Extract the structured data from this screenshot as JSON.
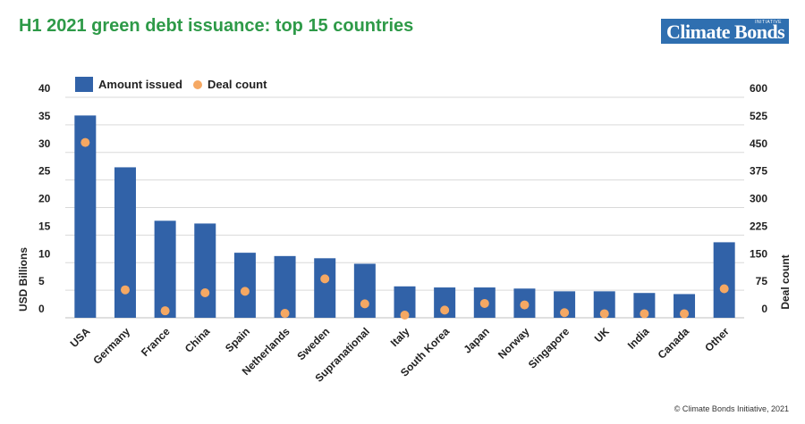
{
  "title": "H1 2021 green debt issuance: top 15 countries",
  "logo": {
    "main": "Climate Bonds",
    "sub": "INITIATIVE"
  },
  "credit": "© Climate Bonds Initiative, 2021",
  "colors": {
    "bars": "#3162a8",
    "dots": "#f5a863",
    "title": "#2e9a48",
    "grid": "#d9d9d9"
  },
  "chart_data": {
    "type": "bar",
    "categories": [
      "USA",
      "Germany",
      "France",
      "China",
      "Spain",
      "Netherlands",
      "Sweden",
      "Supranational",
      "Italy",
      "South Korea",
      "Japan",
      "Norway",
      "Singapore",
      "UK",
      "India",
      "Canada",
      "Other"
    ],
    "series": [
      {
        "name": "Amount issued",
        "type": "bar",
        "axis": "left",
        "values": [
          36.7,
          27.3,
          17.6,
          17.1,
          11.8,
          11.2,
          10.8,
          9.8,
          5.7,
          5.5,
          5.5,
          5.3,
          4.8,
          4.8,
          4.5,
          4.3,
          13.7
        ]
      },
      {
        "name": "Deal count",
        "type": "scatter",
        "axis": "right",
        "values": [
          477,
          76,
          19,
          68,
          72,
          12,
          106,
          38,
          0,
          21,
          39,
          35,
          14,
          11,
          11,
          11,
          79
        ]
      }
    ],
    "ylabel": "USD Billions",
    "y2label": "Deal count",
    "ylim": [
      0,
      40
    ],
    "y2lim": [
      0,
      600
    ],
    "yticks": [
      "40",
      "35",
      "30",
      "25",
      "20",
      "15",
      "10",
      "5",
      "0"
    ],
    "y2ticks": [
      "600",
      "525",
      "450",
      "375",
      "300",
      "225",
      "150",
      "75",
      "0"
    ],
    "grid": true,
    "legend": "top-left"
  }
}
